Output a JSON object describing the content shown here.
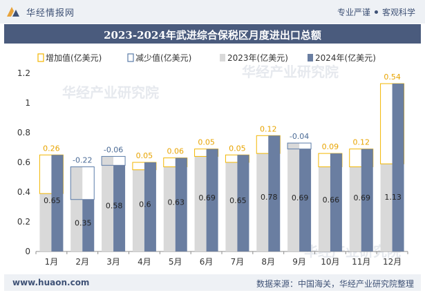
{
  "header": {
    "brand": "华经情报网",
    "slogan_left": "专业严谨",
    "slogan_right": "客观科学"
  },
  "footer": {
    "site": "www.huaon.com",
    "source": "数据来源：中国海关，华经产业研究院整理"
  },
  "colors": {
    "bar_2023": "#d9d9d9",
    "bar_2024": "#6a7ea1",
    "increase": "#f2b600",
    "decrease": "#5a7ba8",
    "title_bg": "#4a5b7d"
  },
  "chart_data": {
    "type": "bar",
    "title": "2023-2024年武进综合保税区月度进出口总额",
    "categories": [
      "1月",
      "2月",
      "3月",
      "4月",
      "5月",
      "6月",
      "7月",
      "8月",
      "9月",
      "10月",
      "11月",
      "12月"
    ],
    "series": [
      {
        "name": "2023年(亿美元)",
        "values": [
          0.39,
          0.57,
          0.64,
          0.55,
          0.57,
          0.64,
          0.6,
          0.66,
          0.73,
          0.57,
          0.57,
          0.59
        ]
      },
      {
        "name": "2024年(亿美元)",
        "values": [
          0.65,
          0.35,
          0.58,
          0.6,
          0.63,
          0.69,
          0.65,
          0.78,
          0.69,
          0.66,
          0.69,
          1.13
        ]
      }
    ],
    "change": {
      "labels": [
        "0.26",
        "-0.22",
        "-0.06",
        "0.05",
        "0.06",
        "0.05",
        "0.05",
        "0.12",
        "-0.04",
        "0.09",
        "0.12",
        "0.54"
      ],
      "values": [
        0.26,
        -0.22,
        -0.06,
        0.05,
        0.06,
        0.05,
        0.05,
        0.12,
        -0.04,
        0.09,
        0.12,
        0.54
      ]
    },
    "value_labels_2024": [
      "0.65",
      "0.35",
      "0.58",
      "0.6",
      "0.63",
      "0.69",
      "0.65",
      "0.78",
      "0.69",
      "0.66",
      "0.69",
      "1.13"
    ],
    "legend": [
      "增加值(亿美元)",
      "减少值(亿美元)",
      "2023年(亿美元)",
      "2024年(亿美元)"
    ],
    "yticks": [
      "0",
      "0.2",
      "0.4",
      "0.6",
      "0.8",
      "1",
      "1.2"
    ],
    "ylim": [
      0,
      1.2
    ],
    "legend_position": "top",
    "grid": false
  }
}
